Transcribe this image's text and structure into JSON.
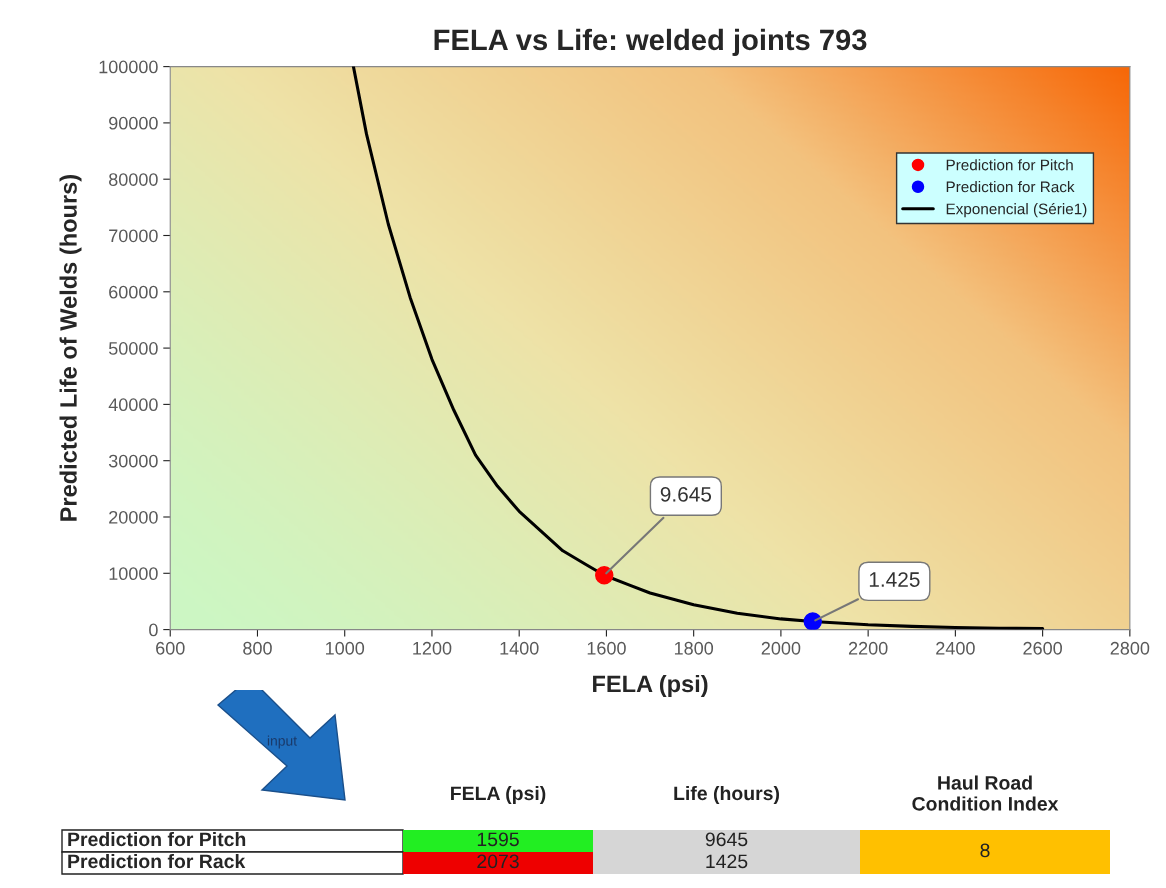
{
  "chart_data": {
    "type": "scatter",
    "title": "FELA vs Life: welded joints 793",
    "xlabel": "FELA (psi)",
    "ylabel": "Predicted Life of Welds (hours)",
    "xlim": [
      600,
      2800
    ],
    "xticks": [
      600,
      800,
      1000,
      1200,
      1400,
      1600,
      1800,
      2000,
      2200,
      2400,
      2600,
      2800
    ],
    "ylim": [
      0,
      100000
    ],
    "yticks": [
      0,
      10000,
      20000,
      30000,
      40000,
      50000,
      60000,
      70000,
      80000,
      90000,
      100000
    ],
    "grid": false,
    "legend": "top right",
    "series": [
      {
        "name": "Prediction for Pitch",
        "marker": "circle",
        "color": "#ff0000",
        "x": [
          1595
        ],
        "values": [
          9645
        ]
      },
      {
        "name": "Prediction for Rack",
        "marker": "circle",
        "color": "#0000ff",
        "x": [
          2073
        ],
        "values": [
          1425
        ]
      },
      {
        "name": "Exponencial (Série1)",
        "type": "line",
        "color": "#000000",
        "x": [
          1020,
          1050,
          1100,
          1150,
          1200,
          1250,
          1300,
          1350,
          1400,
          1450,
          1500,
          1550,
          1595,
          1650,
          1700,
          1800,
          1900,
          2000,
          2073,
          2200,
          2300,
          2400,
          2500,
          2600
        ],
        "values": [
          100000,
          88000,
          72000,
          59000,
          48000,
          39000,
          31000,
          25500,
          21000,
          17500,
          14000,
          11700,
          9645,
          8000,
          6500,
          4400,
          2900,
          1900,
          1425,
          850,
          570,
          380,
          250,
          170
        ]
      }
    ],
    "annotations": [
      {
        "text": "9.645",
        "x": 1595,
        "y": 9645
      },
      {
        "text": "1.425",
        "x": 2073,
        "y": 1425
      },
      "input",
      "FELA (psi)",
      "Life (hours)",
      "Haul Road\nCondition Index",
      "Prediction for Pitch",
      "Prediction for Rack",
      "1595",
      "2073",
      "9645",
      "1425",
      "8"
    ]
  }
}
